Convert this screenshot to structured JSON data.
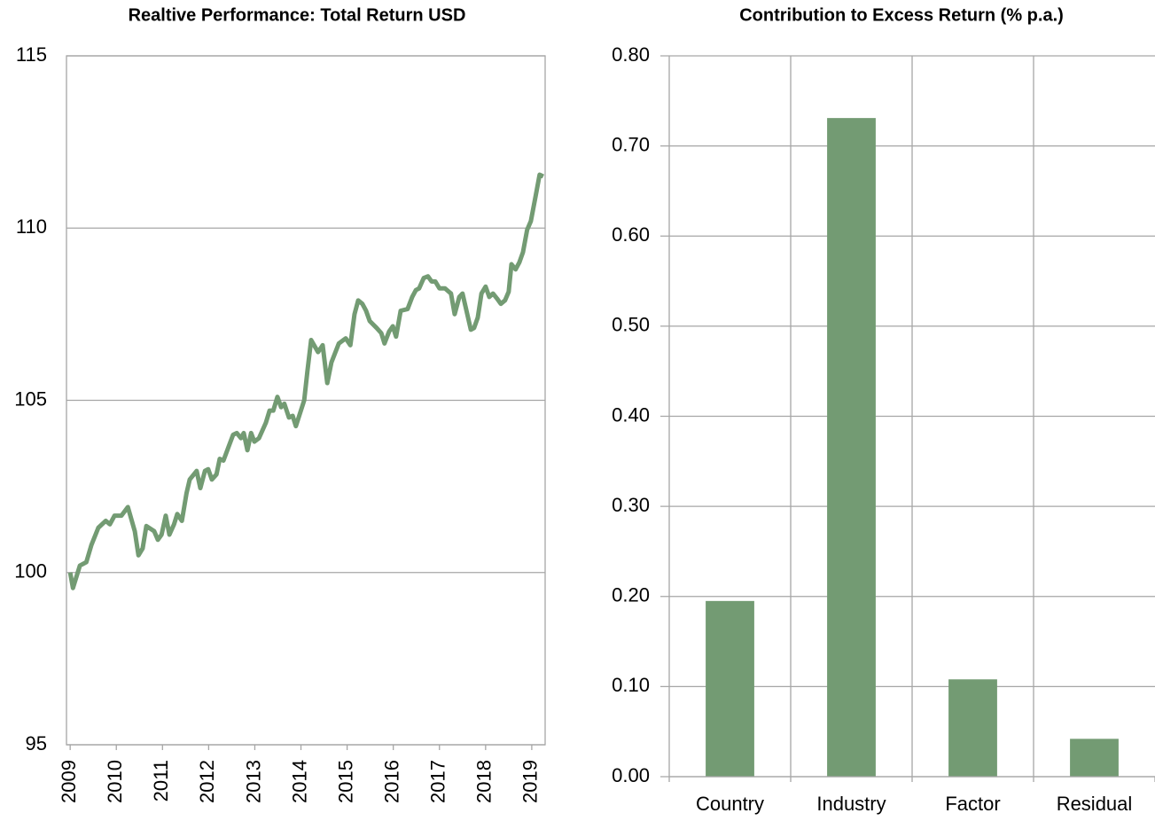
{
  "chart_data": [
    {
      "type": "line",
      "title": "Realtive Performance: Total Return USD",
      "x": [
        2009.0,
        2009.06,
        2009.21,
        2009.35,
        2009.46,
        2009.61,
        2009.77,
        2009.86,
        2009.96,
        2010.11,
        2010.25,
        2010.4,
        2010.48,
        2010.57,
        2010.65,
        2010.82,
        2010.9,
        2010.98,
        2011.07,
        2011.15,
        2011.25,
        2011.32,
        2011.42,
        2011.52,
        2011.59,
        2011.74,
        2011.82,
        2011.92,
        2011.99,
        2012.07,
        2012.17,
        2012.24,
        2012.32,
        2012.53,
        2012.61,
        2012.7,
        2012.76,
        2012.84,
        2012.92,
        2012.99,
        2013.09,
        2013.24,
        2013.32,
        2013.4,
        2013.49,
        2013.57,
        2013.64,
        2013.74,
        2013.82,
        2013.89,
        2014.07,
        2014.14,
        2014.22,
        2014.37,
        2014.47,
        2014.57,
        2014.66,
        2014.82,
        2014.97,
        2015.07,
        2015.16,
        2015.24,
        2015.33,
        2015.41,
        2015.49,
        2015.64,
        2015.74,
        2015.81,
        2015.91,
        2015.99,
        2016.06,
        2016.16,
        2016.31,
        2016.41,
        2016.49,
        2016.56,
        2016.66,
        2016.75,
        2016.83,
        2016.91,
        2017.0,
        2017.12,
        2017.25,
        2017.33,
        2017.43,
        2017.5,
        2017.68,
        2017.75,
        2017.83,
        2017.91,
        2018.0,
        2018.08,
        2018.16,
        2018.25,
        2018.33,
        2018.42,
        2018.5,
        2018.56,
        2018.65,
        2018.73,
        2018.81,
        2018.9,
        2018.98,
        2019.08,
        2019.17,
        2019.25
      ],
      "series": [
        {
          "name": "Total Return",
          "color": "#739b73",
          "values": [
            100.0,
            99.55,
            100.2,
            100.3,
            100.8,
            101.3,
            101.5,
            101.4,
            101.65,
            101.65,
            101.9,
            101.2,
            100.5,
            100.7,
            101.35,
            101.2,
            100.95,
            101.1,
            101.65,
            101.1,
            101.4,
            101.7,
            101.5,
            102.3,
            102.7,
            102.95,
            102.45,
            102.95,
            103.0,
            102.7,
            102.85,
            103.3,
            103.25,
            104.0,
            104.05,
            103.9,
            104.05,
            103.55,
            104.05,
            103.8,
            103.9,
            104.35,
            104.7,
            104.7,
            105.1,
            104.8,
            104.9,
            104.5,
            104.55,
            104.25,
            105.0,
            105.85,
            106.75,
            106.4,
            106.6,
            105.5,
            106.1,
            106.65,
            106.8,
            106.6,
            107.5,
            107.9,
            107.8,
            107.6,
            107.3,
            107.1,
            106.95,
            106.65,
            107.0,
            107.15,
            106.85,
            107.6,
            107.65,
            108.0,
            108.2,
            108.25,
            108.55,
            108.6,
            108.45,
            108.45,
            108.25,
            108.25,
            108.1,
            107.5,
            108.0,
            108.1,
            107.05,
            107.1,
            107.4,
            108.1,
            108.3,
            108.0,
            108.1,
            107.95,
            107.8,
            107.9,
            108.15,
            108.95,
            108.8,
            109.0,
            109.3,
            109.95,
            110.2,
            110.9,
            111.55,
            111.5
          ]
        }
      ],
      "xlim": [
        2008.92,
        2019.29
      ],
      "xticks": [
        2009,
        2010,
        2011,
        2012,
        2013,
        2014,
        2015,
        2016,
        2017,
        2018,
        2019
      ],
      "ylim": [
        95,
        115
      ],
      "yticks": [
        95,
        100,
        105,
        110,
        115
      ],
      "grid": true
    },
    {
      "type": "bar",
      "title": "Contribution to Excess Return (% p.a.)",
      "categories": [
        "Country",
        "Industry",
        "Factor",
        "Residual"
      ],
      "values": [
        0.195,
        0.731,
        0.108,
        0.042
      ],
      "color": "#739b73",
      "ylim": [
        0,
        0.8
      ],
      "yticks": [
        {
          "value": 0,
          "label": "0.00"
        },
        {
          "value": 0.1,
          "label": "0.10"
        },
        {
          "value": 0.2,
          "label": "0.20"
        },
        {
          "value": 0.3,
          "label": "0.30"
        },
        {
          "value": 0.4,
          "label": "0.40"
        },
        {
          "value": 0.5,
          "label": "0.50"
        },
        {
          "value": 0.6,
          "label": "0.60"
        },
        {
          "value": 0.7,
          "label": "0.70"
        },
        {
          "value": 0.8,
          "label": "0.80"
        }
      ],
      "grid": true
    }
  ]
}
